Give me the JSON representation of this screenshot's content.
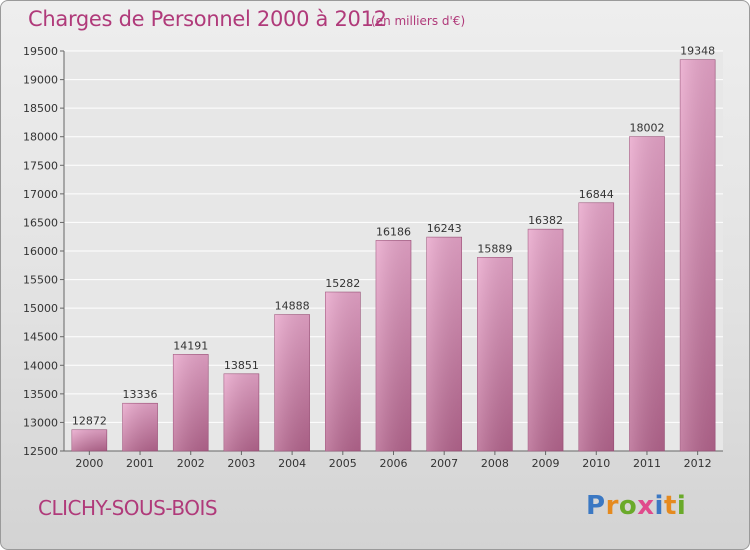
{
  "title": "Charges de Personnel 2000 à 2012",
  "subtitle": "(en milliers d'€)",
  "location": "CLICHY-SOUS-BOIS",
  "logo": {
    "letters": [
      "P",
      "r",
      "o",
      "x",
      "i",
      "t",
      "i"
    ],
    "colors": [
      "#3b78c3",
      "#e58a1f",
      "#6aaa2a",
      "#e04a8c",
      "#3b78c3",
      "#e58a1f",
      "#6aaa2a"
    ]
  },
  "colors": {
    "bar": "#c46a9e",
    "text": "#b03a7a"
  },
  "chart_data": {
    "type": "bar",
    "title": "Charges de Personnel 2000 à 2012",
    "subtitle": "(en milliers d'€)",
    "categories": [
      "2000",
      "2001",
      "2002",
      "2003",
      "2004",
      "2005",
      "2006",
      "2007",
      "2008",
      "2009",
      "2010",
      "2011",
      "2012"
    ],
    "values": [
      12872,
      13336,
      14191,
      13851,
      14888,
      15282,
      16186,
      16243,
      15889,
      16382,
      16844,
      18002,
      19348
    ],
    "ylim": [
      12500,
      19500
    ],
    "yticks": [
      12500,
      13000,
      13500,
      14000,
      14500,
      15000,
      15500,
      16000,
      16500,
      17000,
      17500,
      18000,
      18500,
      19000,
      19500
    ],
    "grid": true,
    "xlabel": "",
    "ylabel": ""
  }
}
